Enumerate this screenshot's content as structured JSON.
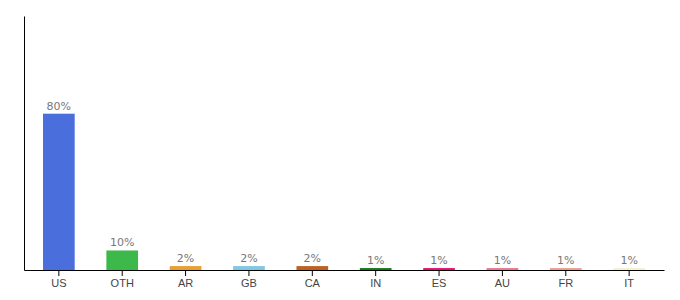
{
  "chart_data": {
    "type": "bar",
    "categories": [
      "US",
      "OTH",
      "AR",
      "GB",
      "CA",
      "IN",
      "ES",
      "AU",
      "FR",
      "IT"
    ],
    "values": [
      80,
      10,
      2,
      2,
      2,
      1,
      1,
      1,
      1,
      1
    ],
    "value_labels": [
      "80%",
      "10%",
      "2%",
      "2%",
      "2%",
      "1%",
      "1%",
      "1%",
      "1%",
      "1%"
    ],
    "colors": [
      "#4a6fdc",
      "#3db84a",
      "#e8a030",
      "#7ec8e3",
      "#c06020",
      "#1a7a1a",
      "#e8107a",
      "#e87a90",
      "#e8a090",
      "#f5f0d0"
    ],
    "ylim": [
      0,
      130
    ],
    "yticks": [],
    "grid": false,
    "data_labels": true,
    "tick_labels": "x"
  }
}
